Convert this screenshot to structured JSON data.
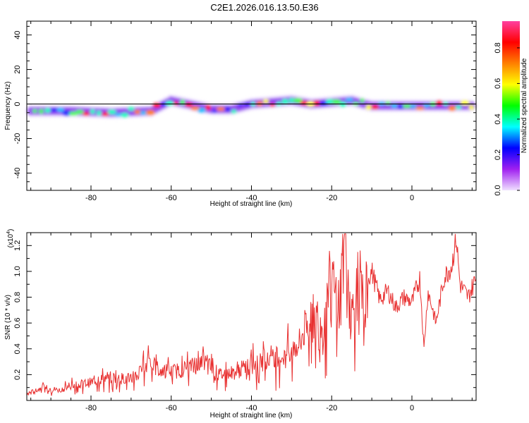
{
  "title": "C2E1.2026.016.13.50.E36",
  "chart_data": [
    {
      "type": "heatmap",
      "title": "C2E1.2026.016.13.50.E36",
      "xlabel": "Height of straight line (km)",
      "ylabel": "Frequency (Hz)",
      "xlim": [
        -96,
        16
      ],
      "ylim": [
        -50,
        48
      ],
      "xticks": [
        -80,
        -60,
        -40,
        -20,
        0
      ],
      "xtick_labels": [
        "-80",
        "-60",
        "-40",
        "-20",
        "0"
      ],
      "yticks": [
        -40,
        -20,
        0,
        20,
        40
      ],
      "ytick_labels": [
        "-40",
        "-20",
        "0",
        "20",
        "40"
      ],
      "ridge": {
        "x": [
          -95,
          -85,
          -75,
          -65,
          -60,
          -50,
          -45,
          -40,
          -35,
          -30,
          -25,
          -20,
          -15,
          -12,
          -10,
          0,
          10,
          15
        ],
        "y": [
          -4,
          -4,
          -5,
          -4,
          2,
          -3,
          -3,
          0,
          1,
          2,
          0,
          1,
          2,
          0,
          -1,
          -1,
          -1,
          -1
        ]
      },
      "colorbar": {
        "label": "Normalized spectral amplitude",
        "range": [
          0.0,
          0.95
        ],
        "ticks": [
          0.0,
          0.2,
          0.4,
          0.6,
          0.8
        ],
        "tick_labels": [
          "0.0",
          "0.2",
          "0.4",
          "0.6",
          "0.8"
        ],
        "colors": [
          "#f0e0ff",
          "#a020f0",
          "#0000ff",
          "#00ffff",
          "#00ff00",
          "#ffff00",
          "#ff8000",
          "#ff0000",
          "#ff40a0"
        ]
      }
    },
    {
      "type": "line",
      "xlabel": "Height of straight line (km)",
      "ylabel": "SNR (10 * v/v)",
      "multiplier": "(x10",
      "multiplier_exp": "4",
      "multiplier_close": ")",
      "xlim": [
        -96,
        16
      ],
      "ylim": [
        0,
        1.3
      ],
      "xticks": [
        -80,
        -60,
        -40,
        -20,
        0
      ],
      "xtick_labels": [
        "-80",
        "-60",
        "-40",
        "-20",
        "0"
      ],
      "yticks": [
        0.2,
        0.4,
        0.6,
        0.8,
        1.0,
        1.2
      ],
      "ytick_labels": [
        "0.2",
        "0.4",
        "0.6",
        "0.8",
        "1.0",
        "1.2"
      ],
      "series": [
        {
          "name": "SNR",
          "color": "#e83030",
          "x": [
            -96,
            -92,
            -88,
            -84,
            -80,
            -76,
            -72,
            -68,
            -66,
            -64,
            -60,
            -56,
            -52,
            -48,
            -44,
            -40,
            -36,
            -32,
            -28,
            -25,
            -22,
            -20,
            -18,
            -17,
            -15,
            -13,
            -12,
            -11,
            -10,
            -8,
            -6,
            -4,
            -2,
            0,
            2,
            3,
            4,
            6,
            8,
            10,
            11,
            12,
            14,
            16
          ],
          "y": [
            0.05,
            0.1,
            0.08,
            0.12,
            0.14,
            0.18,
            0.17,
            0.2,
            0.35,
            0.25,
            0.22,
            0.25,
            0.3,
            0.2,
            0.22,
            0.28,
            0.3,
            0.35,
            0.45,
            0.7,
            0.55,
            0.85,
            0.75,
            1.2,
            0.65,
            0.9,
            0.6,
            0.95,
            1.0,
            0.78,
            0.85,
            0.72,
            0.8,
            0.76,
            0.95,
            0.4,
            0.85,
            0.6,
            0.95,
            1.05,
            1.28,
            0.9,
            0.8,
            0.95
          ]
        }
      ]
    }
  ]
}
